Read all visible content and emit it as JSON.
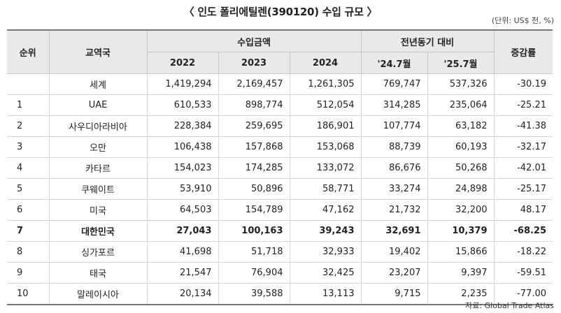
{
  "title": "〈 인도 폴리에틸렌(390120) 수입 규모 〉",
  "unit_note": "(단위: US$ 천, %)",
  "headers": {
    "rank": "순위",
    "country": "교역국",
    "import_amount": "수입금액",
    "yoy_period": "전년동기 대비",
    "growth": "증감률",
    "y2022": "2022",
    "y2023": "2023",
    "y2024": "2024",
    "m2407": "'24.7월",
    "m2507": "'25.7월"
  },
  "rows": [
    {
      "rank": "",
      "country": "세계",
      "y2022": "1,419,294",
      "y2023": "2,169,457",
      "y2024": "1,261,305",
      "m2407": "769,747",
      "m2507": "537,326",
      "growth": "-30.19",
      "highlight": false
    },
    {
      "rank": "1",
      "country": "UAE",
      "y2022": "610,533",
      "y2023": "898,774",
      "y2024": "512,054",
      "m2407": "314,285",
      "m2507": "235,064",
      "growth": "-25.21",
      "highlight": false
    },
    {
      "rank": "2",
      "country": "사우디아라비아",
      "y2022": "228,384",
      "y2023": "259,695",
      "y2024": "186,901",
      "m2407": "107,774",
      "m2507": "63,182",
      "growth": "-41.38",
      "highlight": false
    },
    {
      "rank": "3",
      "country": "오만",
      "y2022": "106,438",
      "y2023": "157,868",
      "y2024": "153,068",
      "m2407": "88,739",
      "m2507": "60,193",
      "growth": "-32.17",
      "highlight": false
    },
    {
      "rank": "4",
      "country": "카타르",
      "y2022": "154,023",
      "y2023": "174,285",
      "y2024": "133,072",
      "m2407": "86,676",
      "m2507": "50,268",
      "growth": "-42.01",
      "highlight": false
    },
    {
      "rank": "5",
      "country": "쿠웨이트",
      "y2022": "53,910",
      "y2023": "50,896",
      "y2024": "58,771",
      "m2407": "33,274",
      "m2507": "24,898",
      "growth": "-25.17",
      "highlight": false
    },
    {
      "rank": "6",
      "country": "미국",
      "y2022": "64,503",
      "y2023": "154,789",
      "y2024": "47,162",
      "m2407": "21,732",
      "m2507": "32,200",
      "growth": "48.17",
      "highlight": false
    },
    {
      "rank": "7",
      "country": "대한민국",
      "y2022": "27,043",
      "y2023": "100,163",
      "y2024": "39,243",
      "m2407": "32,691",
      "m2507": "10,379",
      "growth": "-68.25",
      "highlight": true
    },
    {
      "rank": "8",
      "country": "싱가포르",
      "y2022": "41,698",
      "y2023": "51,718",
      "y2024": "32,933",
      "m2407": "19,402",
      "m2507": "15,866",
      "growth": "-18.22",
      "highlight": false
    },
    {
      "rank": "9",
      "country": "태국",
      "y2022": "21,547",
      "y2023": "76,904",
      "y2024": "32,425",
      "m2407": "23,207",
      "m2507": "9,397",
      "growth": "-59.51",
      "highlight": false
    },
    {
      "rank": "10",
      "country": "말레이시아",
      "y2022": "20,134",
      "y2023": "39,588",
      "y2024": "13,113",
      "m2407": "9,715",
      "m2507": "2,235",
      "growth": "-77.00",
      "highlight": false
    }
  ],
  "source": "자료: Global Trade Atlas"
}
